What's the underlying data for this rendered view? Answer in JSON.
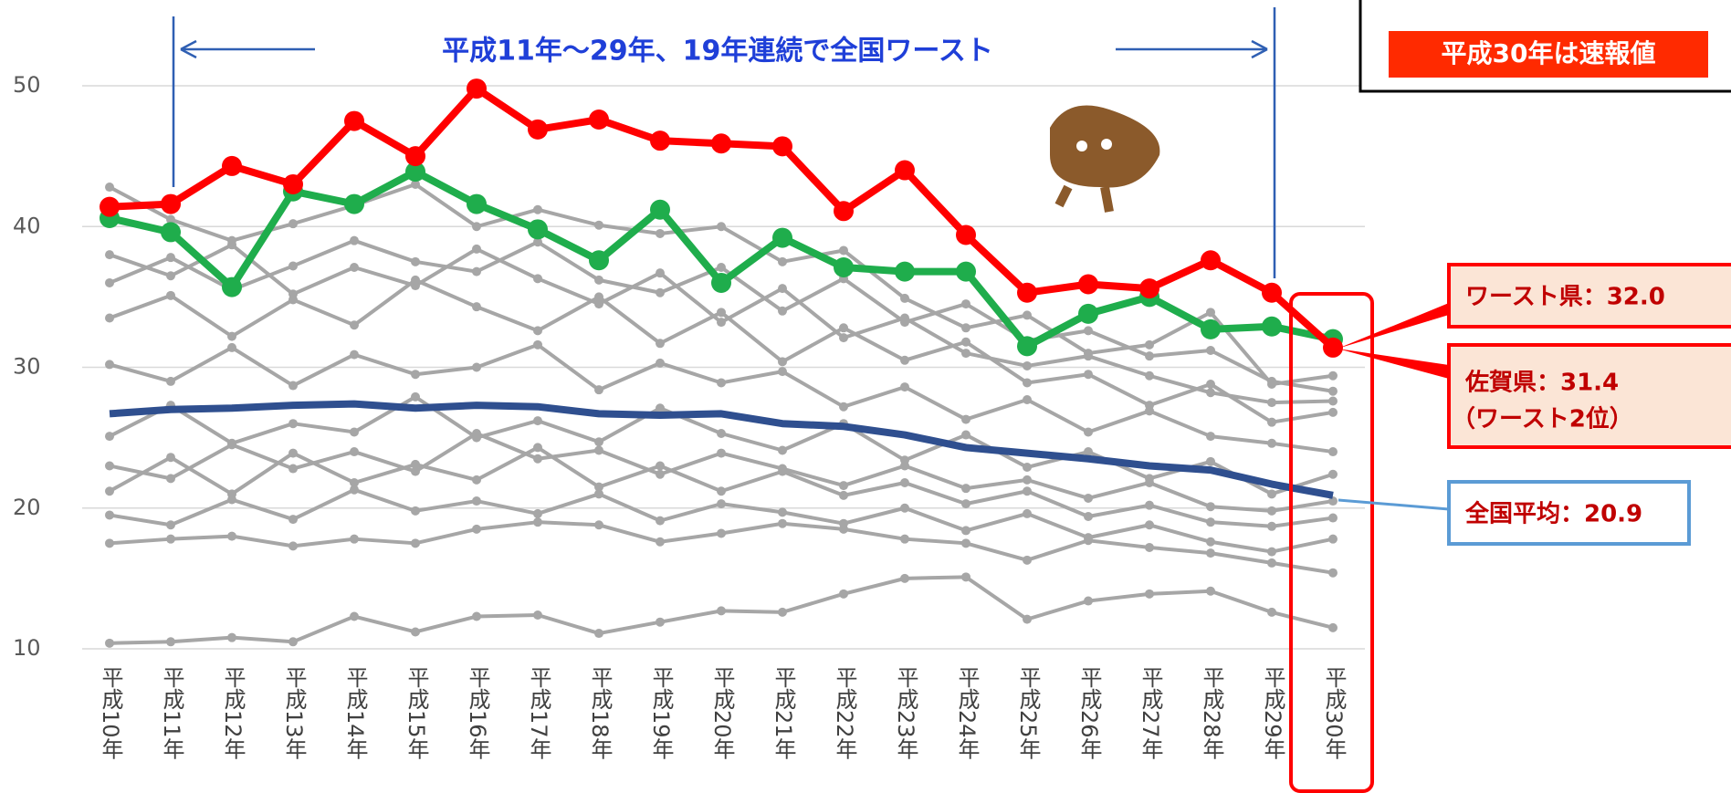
{
  "chart_data": {
    "type": "line",
    "banner": "平成11年～29年、19年連続で全国ワースト",
    "note": "平成30年は速報値",
    "callouts": {
      "worst": "ワースト県：32.0",
      "saga": "佐賀県：31.4",
      "saga_rank": "（ワースト2位）",
      "national": "全国平均：20.9"
    },
    "categories": [
      "平成10年",
      "平成11年",
      "平成12年",
      "平成13年",
      "平成14年",
      "平成15年",
      "平成16年",
      "平成17年",
      "平成18年",
      "平成19年",
      "平成20年",
      "平成21年",
      "平成22年",
      "平成23年",
      "平成24年",
      "平成25年",
      "平成26年",
      "平成27年",
      "平成28年",
      "平成29年",
      "平成30年"
    ],
    "ylim": [
      10,
      50
    ],
    "yticks": [
      10,
      20,
      30,
      40,
      50
    ],
    "grid": true,
    "series": [
      {
        "color": "#a6a6a6",
        "values": [
          10.4,
          10.5,
          10.8,
          10.5,
          12.3,
          11.2,
          12.3,
          12.4,
          11.1,
          11.9,
          12.7,
          12.6,
          13.9,
          15.0,
          15.1,
          12.1,
          13.4,
          13.9,
          14.1,
          12.6,
          11.5
        ]
      },
      {
        "color": "#a6a6a6",
        "values": [
          42.8,
          40.5,
          39.0,
          40.2,
          41.5,
          43.0,
          40.0,
          41.2,
          40.1,
          39.5,
          40.0,
          37.5,
          38.3,
          34.9,
          32.8,
          33.7,
          31.0,
          31.6,
          33.9,
          28.8,
          29.4
        ]
      },
      {
        "color": "#a6a6a6",
        "values": [
          38.0,
          36.5,
          38.7,
          35.2,
          37.1,
          35.8,
          38.4,
          36.3,
          34.5,
          36.7,
          33.2,
          35.6,
          32.1,
          33.5,
          31.0,
          30.1,
          30.8,
          29.4,
          28.2,
          27.5,
          27.6
        ]
      },
      {
        "color": "#a6a6a6",
        "values": [
          33.5,
          35.1,
          32.2,
          34.8,
          33.0,
          36.2,
          34.3,
          32.6,
          35.0,
          31.7,
          33.9,
          30.4,
          32.8,
          30.5,
          31.8,
          28.9,
          29.5,
          27.3,
          28.8,
          26.1,
          26.8
        ]
      },
      {
        "color": "#a6a6a6",
        "values": [
          30.2,
          29.0,
          31.4,
          28.7,
          30.9,
          29.5,
          30.0,
          31.6,
          28.4,
          30.3,
          28.9,
          29.7,
          27.2,
          28.6,
          26.3,
          27.7,
          25.4,
          26.9,
          25.1,
          24.6,
          24.0
        ]
      },
      {
        "color": "#a6a6a6",
        "values": [
          25.1,
          27.3,
          24.6,
          26.0,
          25.4,
          27.9,
          25.0,
          26.2,
          24.7,
          27.1,
          25.3,
          24.1,
          26.0,
          23.4,
          25.2,
          22.9,
          24.0,
          22.1,
          23.3,
          21.0,
          22.4
        ]
      },
      {
        "color": "#a6a6a6",
        "values": [
          23.0,
          22.1,
          24.5,
          22.8,
          24.0,
          22.6,
          25.3,
          23.5,
          24.1,
          22.4,
          23.9,
          22.8,
          21.6,
          23.0,
          21.4,
          22.0,
          20.7,
          21.8,
          20.1,
          19.8,
          20.5
        ]
      },
      {
        "color": "#a6a6a6",
        "values": [
          21.2,
          23.6,
          21.0,
          23.9,
          21.8,
          23.1,
          22.0,
          24.3,
          21.5,
          23.0,
          21.2,
          22.6,
          20.9,
          21.8,
          20.3,
          21.2,
          19.4,
          20.2,
          19.0,
          18.7,
          19.3
        ]
      },
      {
        "color": "#a6a6a6",
        "values": [
          19.5,
          18.8,
          20.6,
          19.2,
          21.3,
          19.8,
          20.5,
          19.6,
          21.0,
          19.1,
          20.3,
          19.7,
          18.9,
          20.0,
          18.4,
          19.6,
          17.9,
          18.8,
          17.6,
          16.9,
          17.8
        ]
      },
      {
        "color": "#a6a6a6",
        "values": [
          17.5,
          17.8,
          18.0,
          17.3,
          17.8,
          17.5,
          18.5,
          19.0,
          18.8,
          17.6,
          18.2,
          18.9,
          18.5,
          17.8,
          17.5,
          16.3,
          17.7,
          17.2,
          16.8,
          16.1,
          15.4
        ]
      },
      {
        "color": "#a6a6a6",
        "values": [
          36.0,
          37.8,
          35.5,
          37.2,
          39.0,
          37.5,
          36.8,
          38.9,
          36.2,
          35.3,
          37.1,
          34.0,
          36.3,
          33.2,
          34.5,
          31.9,
          32.6,
          30.8,
          31.2,
          29.0,
          28.3
        ]
      },
      {
        "color": "#1fad4c",
        "values": [
          40.6,
          39.6,
          35.7,
          42.5,
          41.6,
          43.9,
          41.6,
          39.8,
          37.6,
          41.2,
          36.0,
          39.2,
          37.1,
          36.8,
          36.8,
          31.5,
          33.8,
          35.0,
          32.7,
          32.9,
          32.0
        ]
      },
      {
        "color": "#2f4f8f",
        "values": [
          26.7,
          27.0,
          27.1,
          27.3,
          27.4,
          27.1,
          27.3,
          27.2,
          26.7,
          26.6,
          26.7,
          26.0,
          25.8,
          25.2,
          24.3,
          23.9,
          23.5,
          23.0,
          22.7,
          21.7,
          20.9
        ]
      },
      {
        "color": "#ff0000",
        "values": [
          41.4,
          41.6,
          44.3,
          43.0,
          47.5,
          45.0,
          49.8,
          46.9,
          47.6,
          46.1,
          45.9,
          45.7,
          41.1,
          44.0,
          39.4,
          35.3,
          35.9,
          35.6,
          37.6,
          35.3,
          31.4
        ]
      }
    ]
  }
}
